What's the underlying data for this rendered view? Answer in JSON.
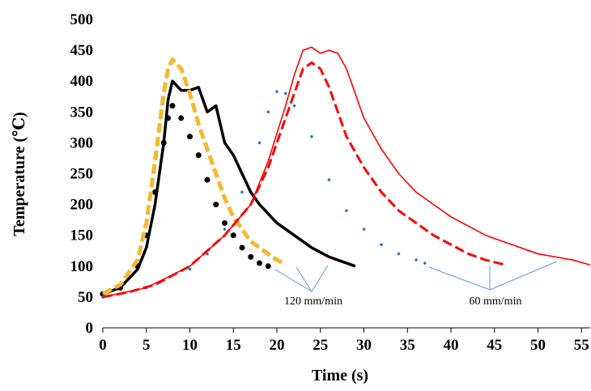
{
  "chart_data": {
    "type": "line",
    "x_label": "Time (s)",
    "y_label": "Temperature (℃)",
    "xlim": [
      0,
      56
    ],
    "xticks": [
      0,
      5,
      10,
      15,
      20,
      25,
      30,
      35,
      40,
      45,
      50,
      55
    ],
    "ylim": [
      0,
      500
    ],
    "yticks": [
      0,
      50,
      100,
      150,
      200,
      250,
      300,
      350,
      400,
      450,
      500
    ],
    "grid": false,
    "annotations": [
      "120 mm/min",
      "60 mm/min"
    ],
    "series": [
      {
        "color": "#000000",
        "style": "dots",
        "x": [
          0,
          2,
          4,
          5,
          6,
          7,
          7.5,
          8,
          9,
          10,
          11,
          12,
          13,
          14,
          15,
          16,
          17,
          18,
          19
        ],
        "values": [
          55,
          65,
          100,
          150,
          220,
          300,
          340,
          360,
          340,
          310,
          280,
          240,
          200,
          170,
          150,
          130,
          115,
          105,
          100
        ]
      },
      {
        "color": "#000000",
        "style": "line",
        "x": [
          0,
          2,
          4,
          5,
          6,
          7,
          7.5,
          8,
          9,
          10,
          11,
          12,
          13,
          14,
          15,
          16,
          17,
          18,
          20,
          22,
          24,
          26,
          28,
          29
        ],
        "values": [
          55,
          65,
          95,
          130,
          200,
          300,
          370,
          400,
          385,
          385,
          390,
          350,
          360,
          300,
          280,
          250,
          220,
          200,
          170,
          150,
          130,
          115,
          105,
          100
        ]
      },
      {
        "color": "#f5b82e",
        "style": "dashed",
        "x": [
          0,
          2,
          4,
          5,
          6,
          7,
          7.5,
          8,
          9,
          10,
          11,
          12,
          13,
          14,
          15,
          16,
          17,
          18,
          19,
          20,
          21
        ],
        "values": [
          55,
          70,
          110,
          170,
          270,
          380,
          420,
          435,
          420,
          380,
          330,
          290,
          250,
          210,
          180,
          160,
          140,
          130,
          120,
          110,
          103
        ]
      },
      {
        "color": "#2e75c8",
        "style": "smalldots",
        "x": [
          0,
          5,
          10,
          12,
          14,
          16,
          18,
          19,
          20,
          21,
          22,
          24,
          26,
          28,
          30,
          32,
          34,
          36,
          37
        ],
        "values": [
          50,
          65,
          95,
          120,
          160,
          220,
          300,
          350,
          383,
          380,
          360,
          310,
          240,
          190,
          160,
          135,
          120,
          110,
          105
        ]
      },
      {
        "color": "#ff0000",
        "style": "dashed",
        "x": [
          0,
          3,
          6,
          10,
          14,
          17,
          19,
          21,
          22,
          23,
          24,
          25,
          26,
          27,
          28,
          30,
          32,
          34,
          36,
          38,
          40,
          42,
          44,
          46
        ],
        "values": [
          50,
          58,
          70,
          100,
          150,
          200,
          260,
          340,
          380,
          420,
          430,
          420,
          390,
          350,
          310,
          260,
          220,
          190,
          170,
          150,
          135,
          120,
          110,
          103
        ]
      },
      {
        "color": "#ff0000",
        "style": "line",
        "x": [
          0,
          5,
          10,
          14,
          17,
          19,
          21,
          22,
          23,
          24,
          25,
          26,
          27,
          28,
          29,
          30,
          32,
          34,
          36,
          38,
          40,
          42,
          44,
          46,
          48,
          50,
          52,
          54,
          56
        ],
        "values": [
          50,
          65,
          100,
          150,
          200,
          270,
          360,
          410,
          450,
          455,
          445,
          450,
          445,
          420,
          380,
          340,
          290,
          250,
          220,
          200,
          180,
          165,
          150,
          140,
          130,
          120,
          115,
          110,
          102
        ]
      }
    ]
  }
}
